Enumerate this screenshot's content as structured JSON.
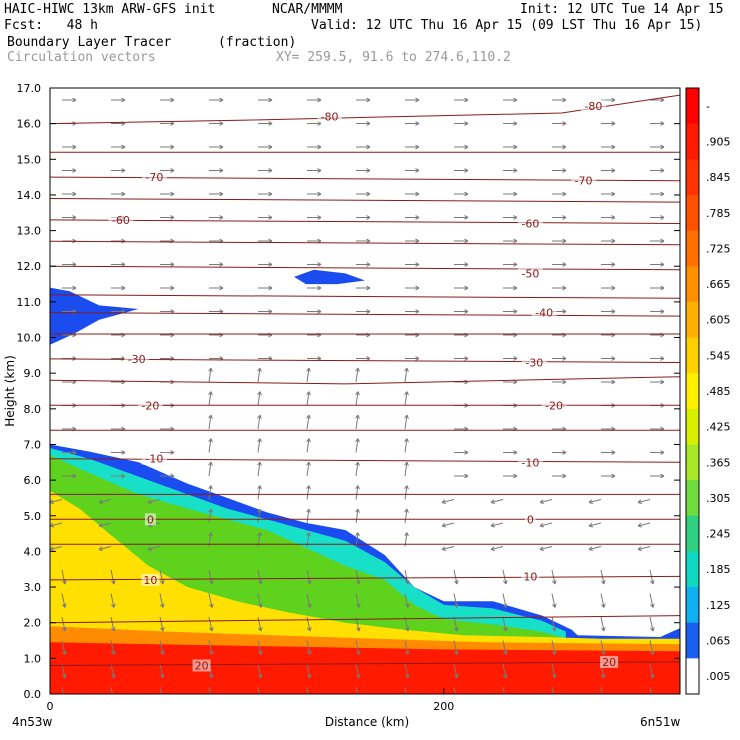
{
  "header": {
    "model": "HAIC-HIWC 13km ARW-GFS init",
    "org": "NCAR/MMMM",
    "init": "Init: 12 UTC Tue 14 Apr 15",
    "fcst": "Fcst:   48 h",
    "valid": "Valid: 12 UTC Thu 16 Apr 15 (09 LST Thu 16 Apr 15)",
    "field": "Boundary Layer Tracer",
    "units": "(fraction)",
    "overlay": "Circulation vectors",
    "xy": "XY= 259.5, 91.6 to 274.6,110.2"
  },
  "colors": {
    "red": "#ff1a00",
    "orange": "#ff8c00",
    "yellow": "#ffe000",
    "green": "#5fd21e",
    "cyan": "#18e0c8",
    "blue": "#1a4cf0",
    "contour": "#8b1a1a",
    "vector": "#7a7a7a"
  },
  "chart_data": {
    "type": "heatmap",
    "title": "Boundary Layer Tracer",
    "xlabel": "Distance (km)",
    "ylabel": "Height (km)",
    "xlim": [
      0,
      320
    ],
    "ylim": [
      0,
      17
    ],
    "x_ticks": [
      0,
      200
    ],
    "x_tick_labels": [
      "0",
      "200"
    ],
    "x_end_labels": [
      "4n53w",
      "6n51w"
    ],
    "y_ticks": [
      0,
      1,
      2,
      3,
      4,
      5,
      6,
      7,
      8,
      9,
      10,
      11,
      12,
      13,
      14,
      15,
      16,
      17
    ],
    "y_tick_labels": [
      "0.0",
      "1.0",
      "2.0",
      "3.0",
      "4.0",
      "5.0",
      "6.0",
      "7.0",
      "8.0",
      "9.0",
      "10.0",
      "11.0",
      "12.0",
      "13.0",
      "14.0",
      "15.0",
      "16.0",
      "17.0"
    ],
    "colorbar_labels": [
      "-",
      ".905",
      ".845",
      ".785",
      ".725",
      ".665",
      ".605",
      ".545",
      ".485",
      ".425",
      ".365",
      ".305",
      ".245",
      ".185",
      ".125",
      ".065",
      ".005"
    ],
    "colorbar_colors": [
      "#ff0000",
      "#ff1a00",
      "#ff3300",
      "#ff5000",
      "#ff7000",
      "#ff9000",
      "#ffb000",
      "#ffd000",
      "#fff000",
      "#d8f000",
      "#a8e828",
      "#70dc40",
      "#30d080",
      "#10d8c0",
      "#10b0f0",
      "#1a60f0",
      "#ffffff"
    ],
    "contour_labels": [
      {
        "text": "-80",
        "x": 142,
        "y": 16.2
      },
      {
        "text": "-80",
        "x": 276,
        "y": 16.5
      },
      {
        "text": "-70",
        "x": 53,
        "y": 14.5
      },
      {
        "text": "-70",
        "x": 271,
        "y": 14.4
      },
      {
        "text": "-60",
        "x": 36,
        "y": 13.3
      },
      {
        "text": "-60",
        "x": 244,
        "y": 13.2
      },
      {
        "text": "-50",
        "x": 244,
        "y": 11.8
      },
      {
        "text": "-40",
        "x": 251,
        "y": 10.7
      },
      {
        "text": "-30",
        "x": 44,
        "y": 9.4
      },
      {
        "text": "-30",
        "x": 246,
        "y": 9.3
      },
      {
        "text": "-20",
        "x": 51,
        "y": 8.1
      },
      {
        "text": "-20",
        "x": 256,
        "y": 8.1
      },
      {
        "text": "-10",
        "x": 53,
        "y": 6.6
      },
      {
        "text": "-10",
        "x": 244,
        "y": 6.5
      },
      {
        "text": "0",
        "x": 51,
        "y": 4.9
      },
      {
        "text": "0",
        "x": 244,
        "y": 4.9
      },
      {
        "text": "10",
        "x": 51,
        "y": 3.2
      },
      {
        "text": "10",
        "x": 244,
        "y": 3.3
      },
      {
        "text": "20",
        "x": 77,
        "y": 0.8
      },
      {
        "text": "20",
        "x": 284,
        "y": 0.9
      }
    ],
    "tracer_regions": [
      {
        "name": "outer",
        "color_key": "blue",
        "boundary": [
          [
            0,
            7.0
          ],
          [
            20,
            6.8
          ],
          [
            45,
            6.5
          ],
          [
            70,
            5.9
          ],
          [
            90,
            5.5
          ],
          [
            110,
            5.1
          ],
          [
            130,
            4.8
          ],
          [
            150,
            4.6
          ],
          [
            170,
            3.9
          ],
          [
            185,
            3.0
          ],
          [
            200,
            2.6
          ],
          [
            225,
            2.6
          ],
          [
            250,
            2.2
          ],
          [
            265,
            1.8
          ],
          [
            268,
            1.65
          ],
          [
            310,
            1.6
          ],
          [
            320,
            1.85
          ],
          [
            320,
            0
          ],
          [
            0,
            0
          ]
        ]
      },
      {
        "name": "cyan",
        "color_key": "cyan",
        "boundary": [
          [
            0,
            6.9
          ],
          [
            20,
            6.6
          ],
          [
            45,
            6.1
          ],
          [
            70,
            5.6
          ],
          [
            90,
            5.2
          ],
          [
            110,
            4.9
          ],
          [
            130,
            4.6
          ],
          [
            150,
            4.3
          ],
          [
            170,
            3.7
          ],
          [
            185,
            3.0
          ],
          [
            200,
            2.5
          ],
          [
            225,
            2.4
          ],
          [
            250,
            2.05
          ],
          [
            262,
            1.75
          ],
          [
            262,
            0
          ],
          [
            0,
            0
          ]
        ]
      },
      {
        "name": "green",
        "color_key": "green",
        "boundary": [
          [
            0,
            6.7
          ],
          [
            20,
            6.2
          ],
          [
            45,
            5.6
          ],
          [
            70,
            5.2
          ],
          [
            90,
            4.9
          ],
          [
            110,
            4.6
          ],
          [
            130,
            4.1
          ],
          [
            150,
            3.6
          ],
          [
            170,
            3.2
          ],
          [
            185,
            2.5
          ],
          [
            200,
            2.1
          ],
          [
            225,
            1.95
          ],
          [
            250,
            1.75
          ],
          [
            265,
            1.5
          ],
          [
            265,
            0
          ],
          [
            0,
            0
          ]
        ]
      },
      {
        "name": "yellow",
        "color_key": "yellow",
        "boundary": [
          [
            0,
            5.7
          ],
          [
            15,
            5.2
          ],
          [
            30,
            4.5
          ],
          [
            50,
            3.6
          ],
          [
            70,
            3.0
          ],
          [
            95,
            2.6
          ],
          [
            120,
            2.3
          ],
          [
            150,
            2.0
          ],
          [
            180,
            1.8
          ],
          [
            210,
            1.65
          ],
          [
            250,
            1.6
          ],
          [
            280,
            1.55
          ],
          [
            320,
            1.55
          ],
          [
            320,
            0
          ],
          [
            0,
            0
          ]
        ]
      },
      {
        "name": "orange",
        "color_key": "orange",
        "boundary": [
          [
            0,
            1.9
          ],
          [
            60,
            1.75
          ],
          [
            140,
            1.6
          ],
          [
            220,
            1.45
          ],
          [
            320,
            1.4
          ],
          [
            320,
            0
          ],
          [
            0,
            0
          ]
        ]
      },
      {
        "name": "red",
        "color_key": "red",
        "boundary": [
          [
            0,
            1.45
          ],
          [
            100,
            1.35
          ],
          [
            200,
            1.25
          ],
          [
            320,
            1.2
          ],
          [
            320,
            0
          ],
          [
            0,
            0
          ]
        ]
      },
      {
        "name": "upper-left",
        "color_key": "blue",
        "boundary": [
          [
            0,
            11.4
          ],
          [
            10,
            11.3
          ],
          [
            25,
            10.9
          ],
          [
            45,
            10.8
          ],
          [
            25,
            10.5
          ],
          [
            12,
            10.1
          ],
          [
            0,
            9.8
          ]
        ]
      },
      {
        "name": "upper-center",
        "color_key": "blue",
        "boundary": [
          [
            124,
            11.7
          ],
          [
            134,
            11.9
          ],
          [
            150,
            11.8
          ],
          [
            160,
            11.6
          ],
          [
            146,
            11.5
          ],
          [
            130,
            11.5
          ]
        ]
      }
    ],
    "theta_contours": [
      [
        [
          0,
          16.0
        ],
        [
          100,
          16.1
        ],
        [
          180,
          16.2
        ],
        [
          260,
          16.3
        ],
        [
          320,
          16.8
        ]
      ],
      [
        [
          0,
          15.2
        ],
        [
          320,
          15.2
        ]
      ],
      [
        [
          0,
          14.5
        ],
        [
          320,
          14.4
        ]
      ],
      [
        [
          0,
          13.9
        ],
        [
          320,
          13.8
        ]
      ],
      [
        [
          0,
          13.3
        ],
        [
          320,
          13.2
        ]
      ],
      [
        [
          0,
          12.7
        ],
        [
          320,
          12.6
        ]
      ],
      [
        [
          0,
          12.0
        ],
        [
          320,
          11.9
        ]
      ],
      [
        [
          0,
          11.2
        ],
        [
          320,
          11.1
        ]
      ],
      [
        [
          0,
          10.7
        ],
        [
          320,
          10.6
        ]
      ],
      [
        [
          0,
          10.1
        ],
        [
          320,
          10.1
        ]
      ],
      [
        [
          0,
          9.4
        ],
        [
          320,
          9.3
        ]
      ],
      [
        [
          0,
          8.8
        ],
        [
          150,
          8.7
        ],
        [
          320,
          8.9
        ]
      ],
      [
        [
          0,
          8.1
        ],
        [
          320,
          8.1
        ]
      ],
      [
        [
          0,
          7.4
        ],
        [
          320,
          7.4
        ]
      ],
      [
        [
          0,
          6.6
        ],
        [
          320,
          6.5
        ]
      ],
      [
        [
          0,
          5.6
        ],
        [
          320,
          5.6
        ]
      ],
      [
        [
          0,
          4.9
        ],
        [
          320,
          4.9
        ]
      ],
      [
        [
          0,
          4.2
        ],
        [
          320,
          4.2
        ]
      ],
      [
        [
          0,
          3.2
        ],
        [
          320,
          3.3
        ]
      ],
      [
        [
          0,
          2.0
        ],
        [
          320,
          2.2
        ]
      ],
      [
        [
          0,
          0.8
        ],
        [
          320,
          0.9
        ]
      ]
    ]
  }
}
